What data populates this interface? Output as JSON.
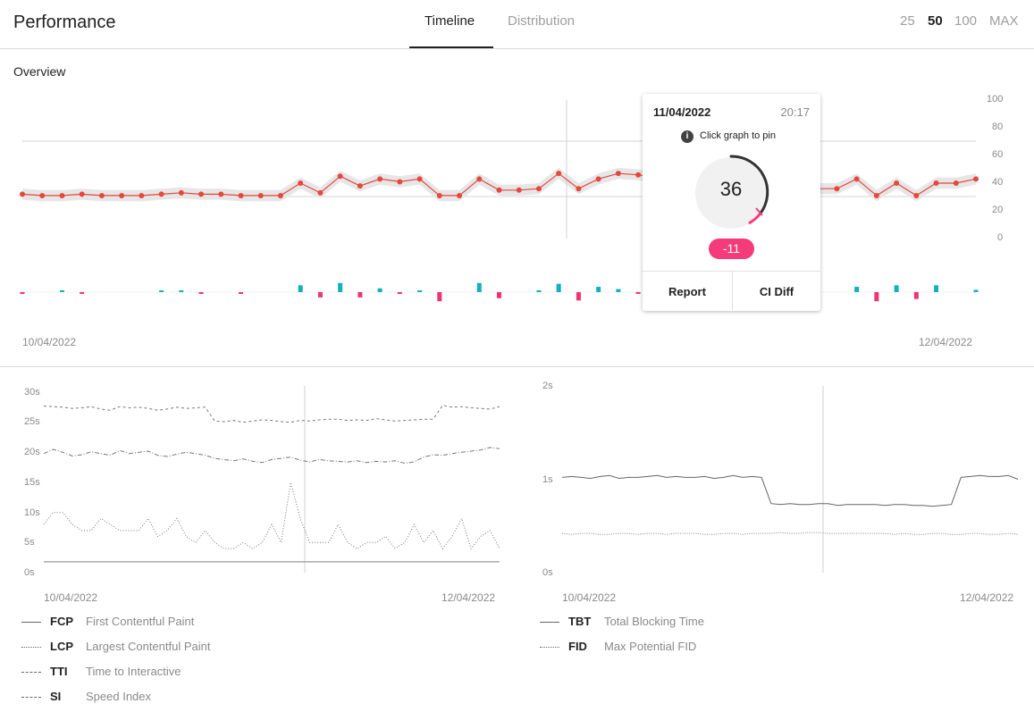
{
  "header": {
    "title": "Performance",
    "tabs": [
      "Timeline",
      "Distribution"
    ],
    "ranges": [
      "25",
      "50",
      "100",
      "MAX"
    ],
    "active_tab": "Timeline",
    "active_range": "50"
  },
  "overview": {
    "title": "Overview",
    "x_start": "10/04/2022",
    "x_end": "12/04/2022",
    "y_ticks": [
      "100",
      "80",
      "60",
      "40",
      "20",
      "0"
    ]
  },
  "tooltip": {
    "date": "11/04/2022",
    "time": "20:17",
    "info_glyph": "i",
    "hint": "Click graph to pin",
    "score": "36",
    "delta": "-11",
    "report_label": "Report",
    "ci_diff_label": "CI Diff"
  },
  "metrics_left": {
    "y_ticks": [
      "30s",
      "25s",
      "20s",
      "15s",
      "10s",
      "5s",
      "0s"
    ],
    "x_start": "10/04/2022",
    "x_end": "12/04/2022",
    "legend": [
      {
        "key": "FCP",
        "name": "First Contentful Paint"
      },
      {
        "key": "LCP",
        "name": "Largest Contentful Paint"
      },
      {
        "key": "TTI",
        "name": "Time to Interactive"
      },
      {
        "key": "SI",
        "name": "Speed Index"
      }
    ]
  },
  "metrics_right": {
    "y_ticks": [
      "2s",
      "1s",
      "0s"
    ],
    "x_start": "10/04/2022",
    "x_end": "12/04/2022",
    "legend": [
      {
        "key": "TBT",
        "name": "Total Blocking Time"
      },
      {
        "key": "FID",
        "name": "Max Potential FID"
      }
    ]
  },
  "colors": {
    "score_line": "#e5483c",
    "band": "#e6e6e6",
    "diff_up": "#14b0bf",
    "diff_down": "#f0346f",
    "gauge": "#333333",
    "delta_bg": "#f53b7a"
  },
  "chart_data": [
    {
      "type": "line",
      "ylim": [
        0,
        100
      ],
      "y_ticks": [
        0,
        20,
        40,
        60,
        80,
        100
      ],
      "x_labels": [
        "10/04/2022",
        "12/04/2022"
      ],
      "series": [
        {
          "values": [
            32,
            31,
            31,
            32,
            31,
            31,
            31,
            32,
            33,
            32,
            32,
            31,
            31,
            31,
            40,
            33,
            45,
            38,
            43,
            41,
            43,
            31,
            31,
            43,
            35,
            35,
            36,
            47,
            36,
            43,
            47,
            46,
            44,
            43,
            40,
            39,
            37,
            36,
            35,
            35,
            36,
            36,
            43,
            31,
            40,
            31,
            40,
            40,
            43
          ]
        }
      ],
      "score_deltas": [
        -1,
        0,
        1,
        -1,
        0,
        0,
        0,
        1,
        1,
        -1,
        0,
        -1,
        0,
        0,
        9,
        -7,
        12,
        -7,
        5,
        -2,
        2,
        -12,
        0,
        12,
        -8,
        0,
        1,
        11,
        -11,
        7,
        4,
        -1,
        -2,
        -1,
        -3,
        -1,
        -2,
        -1,
        -1,
        0,
        1,
        0,
        7,
        -12,
        9,
        -9,
        9,
        0,
        3
      ]
    },
    {
      "type": "line",
      "ylabel": "",
      "ylim": [
        0,
        30
      ],
      "y_ticks": [
        "0s",
        "5s",
        "10s",
        "15s",
        "20s",
        "25s",
        "30s"
      ],
      "x_labels": [
        "10/04/2022",
        "12/04/2022"
      ],
      "series": [
        {
          "name": "FCP",
          "values": [
            1.8,
            1.8,
            1.8,
            1.8,
            1.8,
            1.8,
            1.8,
            1.8,
            1.8,
            1.8,
            1.8,
            1.8,
            1.8,
            1.8,
            1.8,
            1.8,
            1.8,
            1.8,
            1.8,
            1.8,
            1.8,
            1.8,
            1.8,
            1.8,
            1.8,
            1.8,
            1.8,
            1.8,
            1.8,
            1.8,
            1.8,
            1.8,
            1.8,
            1.8,
            1.8,
            1.8,
            1.8,
            1.8,
            1.8,
            1.8,
            1.8,
            1.8,
            1.8,
            1.8,
            1.8,
            1.8,
            1.8,
            1.8,
            1.8
          ]
        },
        {
          "name": "LCP",
          "values": [
            8,
            10,
            10,
            8,
            7,
            7,
            9,
            8,
            7,
            7,
            7,
            9,
            6,
            7,
            9,
            6,
            5,
            7,
            5,
            4,
            4,
            5,
            4,
            5,
            8,
            5,
            15,
            9,
            5,
            5,
            5,
            8,
            5,
            4,
            5,
            5,
            6,
            4,
            5,
            8,
            5,
            7,
            4,
            6,
            9,
            4,
            6,
            7,
            4
          ]
        },
        {
          "name": "TTI",
          "values": [
            27.7,
            27.6,
            27.5,
            27.3,
            27.4,
            27.6,
            27.2,
            27.0,
            27.6,
            27.4,
            27.5,
            27.3,
            27.0,
            27.2,
            27.5,
            27.3,
            27.4,
            27.5,
            25.2,
            25.1,
            25.3,
            25.0,
            25.2,
            25.4,
            25.3,
            25.1,
            25.0,
            25.3,
            25.2,
            25.4,
            25.5,
            25.5,
            25.3,
            25.4,
            25.3,
            25.6,
            25.4,
            25.2,
            25.3,
            25.4,
            25.5,
            25.5,
            27.8,
            27.5,
            27.6,
            27.4,
            27.3,
            27.2,
            27.6
          ]
        },
        {
          "name": "SI",
          "values": [
            19.8,
            20.5,
            20.0,
            19.4,
            19.6,
            20.1,
            19.8,
            19.5,
            20.3,
            19.8,
            20.0,
            20.2,
            19.5,
            19.3,
            19.7,
            20.0,
            19.8,
            19.5,
            19.0,
            18.8,
            18.6,
            18.9,
            18.5,
            18.3,
            18.8,
            19.0,
            19.2,
            18.7,
            18.4,
            18.8,
            18.6,
            18.5,
            18.4,
            18.6,
            18.3,
            18.5,
            18.4,
            18.6,
            18.2,
            18.4,
            19.2,
            19.6,
            19.5,
            19.8,
            20.0,
            20.2,
            20.4,
            20.8,
            20.6
          ]
        }
      ]
    },
    {
      "type": "line",
      "ylim": [
        0,
        2
      ],
      "y_ticks": [
        "0s",
        "1s",
        "2s"
      ],
      "x_labels": [
        "10/04/2022",
        "12/04/2022"
      ],
      "series": [
        {
          "name": "TBT",
          "values": [
            1.02,
            1.03,
            1.02,
            1.01,
            1.03,
            1.04,
            1.01,
            1.02,
            1.02,
            1.03,
            1.04,
            1.02,
            1.03,
            1.02,
            1.02,
            1.03,
            1.01,
            1.02,
            1.04,
            1.02,
            1.03,
            1.02,
            0.74,
            0.73,
            0.74,
            0.73,
            0.73,
            0.74,
            0.74,
            0.72,
            0.73,
            0.73,
            0.73,
            0.73,
            0.72,
            0.73,
            0.73,
            0.72,
            0.72,
            0.71,
            0.72,
            0.73,
            1.02,
            1.03,
            1.04,
            1.03,
            1.03,
            1.04,
            1.0
          ]
        },
        {
          "name": "FID",
          "values": [
            0.42,
            0.41,
            0.42,
            0.42,
            0.41,
            0.41,
            0.42,
            0.42,
            0.41,
            0.42,
            0.42,
            0.41,
            0.42,
            0.42,
            0.42,
            0.41,
            0.41,
            0.42,
            0.42,
            0.41,
            0.42,
            0.42,
            0.42,
            0.43,
            0.42,
            0.42,
            0.43,
            0.43,
            0.42,
            0.42,
            0.42,
            0.42,
            0.42,
            0.42,
            0.42,
            0.41,
            0.42,
            0.41,
            0.41,
            0.42,
            0.42,
            0.41,
            0.41,
            0.42,
            0.42,
            0.41,
            0.41,
            0.42,
            0.41
          ]
        }
      ]
    }
  ]
}
